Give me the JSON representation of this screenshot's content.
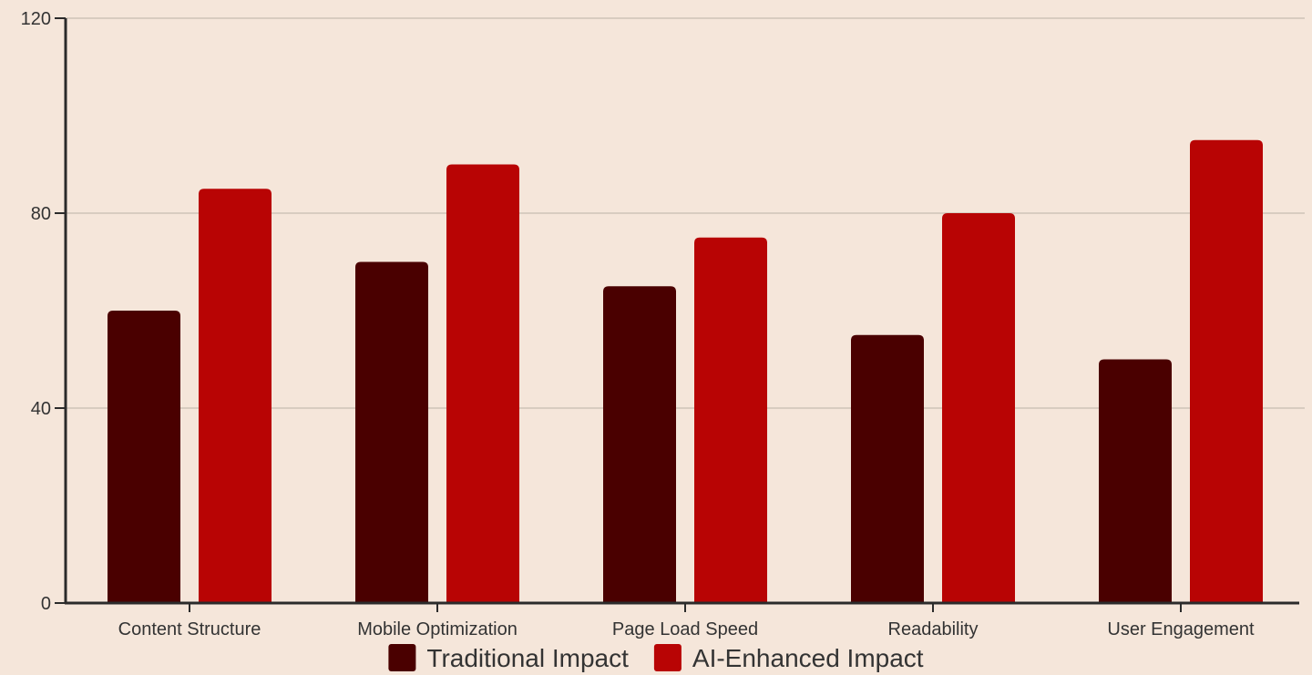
{
  "chart_data": {
    "type": "bar",
    "categories": [
      "Content Structure",
      "Mobile Optimization",
      "Page Load Speed",
      "Readability",
      "User Engagement"
    ],
    "series": [
      {
        "name": "Traditional Impact",
        "values": [
          60,
          70,
          65,
          55,
          50
        ],
        "color": "#4a0000"
      },
      {
        "name": "AI-Enhanced Impact",
        "values": [
          85,
          90,
          75,
          80,
          95
        ],
        "color": "#b80404"
      }
    ],
    "ylim": [
      0,
      120
    ],
    "yticks": [
      0,
      40,
      80,
      120
    ],
    "grid": true,
    "legend": "bottom-center",
    "colors": {
      "background": "#f5e6da",
      "grid": "#cfc3b8",
      "axis": "#2b2b2b",
      "text": "#333333"
    }
  }
}
